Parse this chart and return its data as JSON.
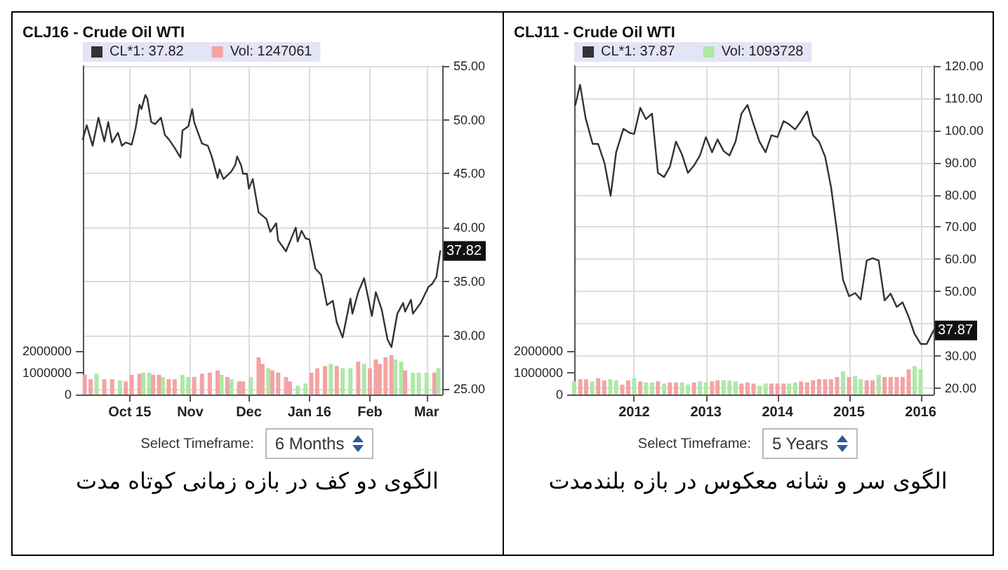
{
  "chart_data": [
    {
      "type": "line",
      "title": "CLJ16 - Crude Oil WTI",
      "xlim": [
        "2015-09-07",
        "2016-03-09"
      ],
      "xticks": [
        {
          "value": "2015-10-01",
          "label": "Oct 15"
        },
        {
          "value": "2015-11-01",
          "label": "Nov"
        },
        {
          "value": "2015-12-01",
          "label": "Dec"
        },
        {
          "value": "2016-01-01",
          "label": "Jan 16"
        },
        {
          "value": "2016-02-01",
          "label": "Feb"
        },
        {
          "value": "2016-03-01",
          "label": "Mar"
        }
      ],
      "ylim": [
        24.5,
        55
      ],
      "yticks": [
        {
          "value": 25,
          "label": "25.00"
        },
        {
          "value": 30,
          "label": "30.00"
        },
        {
          "value": 35,
          "label": "35.00"
        },
        {
          "value": 40,
          "label": "40.00"
        },
        {
          "value": 45,
          "label": "45.00"
        },
        {
          "value": 50,
          "label": "50.00"
        },
        {
          "value": 55,
          "label": "55.00"
        }
      ],
      "y2lim": [
        0,
        15000000
      ],
      "y2ticks": [
        0,
        1000000,
        2000000
      ],
      "grid": true,
      "legend": "top left",
      "series": [
        {
          "name": "CL*1: 37.82",
          "color": "#333333",
          "x": [
            "2015-09-07",
            "2015-09-09",
            "2015-09-12",
            "2015-09-15",
            "2015-09-18",
            "2015-09-20",
            "2015-09-22",
            "2015-09-25",
            "2015-09-27",
            "2015-09-29",
            "2015-10-02",
            "2015-10-04",
            "2015-10-06",
            "2015-10-07",
            "2015-10-09",
            "2015-10-10",
            "2015-10-12",
            "2015-10-14",
            "2015-10-17",
            "2015-10-19",
            "2015-10-21",
            "2015-10-24",
            "2015-10-27",
            "2015-10-28",
            "2015-10-31",
            "2015-11-02",
            "2015-11-03",
            "2015-11-07",
            "2015-11-10",
            "2015-11-12",
            "2015-11-15",
            "2015-11-16",
            "2015-11-18",
            "2015-11-22",
            "2015-11-24",
            "2015-11-25",
            "2015-11-27",
            "2015-11-28",
            "2015-11-30",
            "2015-12-01",
            "2015-12-03",
            "2015-12-06",
            "2015-12-10",
            "2015-12-12",
            "2015-12-15",
            "2015-12-16",
            "2015-12-20",
            "2015-12-25",
            "2015-12-26",
            "2015-12-28",
            "2015-12-30",
            "2016-01-01",
            "2016-01-04",
            "2016-01-07",
            "2016-01-10",
            "2016-01-13",
            "2016-01-15",
            "2016-01-18",
            "2016-01-22",
            "2016-01-23",
            "2016-01-26",
            "2016-01-29",
            "2016-02-02",
            "2016-02-04",
            "2016-02-07",
            "2016-02-10",
            "2016-02-12",
            "2016-02-15",
            "2016-02-18",
            "2016-02-19",
            "2016-02-22",
            "2016-02-23",
            "2016-02-27",
            "2016-03-02",
            "2016-03-04",
            "2016-03-06",
            "2016-03-08"
          ],
          "values": [
            48.2,
            49.5,
            47.6,
            50.2,
            48.0,
            49.8,
            47.9,
            48.8,
            47.6,
            47.9,
            47.7,
            49.2,
            51.4,
            51.0,
            52.3,
            52.0,
            49.8,
            49.6,
            50.2,
            48.6,
            48.2,
            47.4,
            46.5,
            49.0,
            49.4,
            51.0,
            49.8,
            47.8,
            47.6,
            46.6,
            44.6,
            45.4,
            44.5,
            45.2,
            45.8,
            46.6,
            45.8,
            45.0,
            45.0,
            43.6,
            44.5,
            41.4,
            40.8,
            39.6,
            40.4,
            38.8,
            37.8,
            40.0,
            38.7,
            39.7,
            39.0,
            38.9,
            36.2,
            35.6,
            32.8,
            33.2,
            31.2,
            29.8,
            33.4,
            32.0,
            34.0,
            35.3,
            31.8,
            34.0,
            32.4,
            29.6,
            28.9,
            32.0,
            33.0,
            32.2,
            33.3,
            32.0,
            33.0,
            34.5,
            34.8,
            35.4,
            37.82
          ]
        },
        {
          "name": "Vol: 1247061",
          "type": "bar",
          "axis": "y2",
          "color": "#f4a3a3",
          "x": [
            "2015-09-08",
            "2015-09-11",
            "2015-09-14",
            "2015-09-18",
            "2015-09-22",
            "2015-09-26",
            "2015-09-29",
            "2015-10-02",
            "2015-10-06",
            "2015-10-08",
            "2015-10-11",
            "2015-10-13",
            "2015-10-16",
            "2015-10-18",
            "2015-10-21",
            "2015-10-24",
            "2015-10-28",
            "2015-10-31",
            "2015-11-03",
            "2015-11-07",
            "2015-11-11",
            "2015-11-15",
            "2015-11-17",
            "2015-11-20",
            "2015-11-22",
            "2015-11-26",
            "2015-11-28",
            "2015-12-02",
            "2015-12-06",
            "2015-12-08",
            "2015-12-11",
            "2015-12-13",
            "2015-12-16",
            "2015-12-20",
            "2015-12-22",
            "2015-12-26",
            "2015-12-30",
            "2016-01-02",
            "2016-01-05",
            "2016-01-09",
            "2016-01-12",
            "2016-01-15",
            "2016-01-18",
            "2016-01-22",
            "2016-01-26",
            "2016-01-29",
            "2016-02-01",
            "2016-02-04",
            "2016-02-06",
            "2016-02-09",
            "2016-02-12",
            "2016-02-14",
            "2016-02-17",
            "2016-02-19",
            "2016-02-23",
            "2016-02-26",
            "2016-03-01",
            "2016-03-05",
            "2016-03-07"
          ],
          "values": [
            900000,
            700000,
            950000,
            700000,
            700000,
            650000,
            600000,
            900000,
            950000,
            1000000,
            1000000,
            900000,
            900000,
            800000,
            700000,
            700000,
            900000,
            800000,
            800000,
            950000,
            1000000,
            1100000,
            900000,
            800000,
            700000,
            600000,
            600000,
            800000,
            1700000,
            1400000,
            1200000,
            1100000,
            1000000,
            800000,
            600000,
            400000,
            500000,
            1000000,
            1200000,
            1300000,
            1400000,
            1300000,
            1200000,
            1200000,
            1500000,
            1400000,
            1200000,
            1600000,
            1400000,
            1700000,
            1800000,
            1600000,
            1500000,
            1100000,
            1000000,
            1000000,
            1000000,
            1000000,
            1200000
          ],
          "colors": [
            "#f4a3a3",
            "#f4a3a3",
            "#aee8a6",
            "#f4a3a3",
            "#f4a3a3",
            "#aee8a6",
            "#f4a3a3",
            "#f4a3a3",
            "#f4a3a3",
            "#aee8a6",
            "#aee8a6",
            "#f4a3a3",
            "#f4a3a3",
            "#aee8a6",
            "#f4a3a3",
            "#f4a3a3",
            "#aee8a6",
            "#aee8a6",
            "#f4a3a3",
            "#f4a3a3",
            "#f4a3a3",
            "#f4a3a3",
            "#aee8a6",
            "#f4a3a3",
            "#aee8a6",
            "#f4a3a3",
            "#f4a3a3",
            "#aee8a6",
            "#f4a3a3",
            "#f4a3a3",
            "#aee8a6",
            "#f4a3a3",
            "#f4a3a3",
            "#f4a3a3",
            "#f4a3a3",
            "#aee8a6",
            "#aee8a6",
            "#f4a3a3",
            "#f4a3a3",
            "#f4a3a3",
            "#aee8a6",
            "#f4a3a3",
            "#aee8a6",
            "#aee8a6",
            "#f4a3a3",
            "#aee8a6",
            "#f4a3a3",
            "#f4a3a3",
            "#f4a3a3",
            "#f4a3a3",
            "#f4a3a3",
            "#aee8a6",
            "#aee8a6",
            "#f4a3a3",
            "#aee8a6",
            "#aee8a6",
            "#aee8a6",
            "#f4a3a3",
            "#aee8a6"
          ]
        }
      ],
      "annotations": [
        {
          "text": "37.82",
          "x": "2016-03-08",
          "y": 37.82
        },
        "Select Timeframe:",
        "6 Months",
        "الگوی دو کف در بازه زمانی کوتاه مدت"
      ]
    },
    {
      "type": "line",
      "title": "CLJ11 - Crude Oil WTI",
      "xlim": [
        "2011-03-01",
        "2016-03-07"
      ],
      "xticks": [
        {
          "value": "2012-01-01",
          "label": "2012"
        },
        {
          "value": "2013-01-01",
          "label": "2013"
        },
        {
          "value": "2014-01-01",
          "label": "2014"
        },
        {
          "value": "2015-01-01",
          "label": "2015"
        },
        {
          "value": "2016-01-01",
          "label": "2016"
        }
      ],
      "ylim": [
        18,
        120
      ],
      "yticks": [
        {
          "value": 20,
          "label": "20.00"
        },
        {
          "value": 30,
          "label": "30.00"
        },
        {
          "value": 40,
          "label": null
        },
        {
          "value": 50,
          "label": "50.00"
        },
        {
          "value": 60,
          "label": "60.00"
        },
        {
          "value": 70,
          "label": "70.00"
        },
        {
          "value": 80,
          "label": "80.00"
        },
        {
          "value": 90,
          "label": "90.00"
        },
        {
          "value": 100,
          "label": "100.00"
        },
        {
          "value": 110,
          "label": "110.00"
        },
        {
          "value": 120,
          "label": "120.00"
        }
      ],
      "y2lim": [
        0,
        15000000
      ],
      "y2ticks": [
        0,
        1000000,
        2000000
      ],
      "grid": true,
      "legend": "top left",
      "series": [
        {
          "name": "CL*1: 37.87",
          "color": "#333333",
          "x": [
            "2011-03-07",
            "2011-03-31",
            "2011-04-28",
            "2011-06-03",
            "2011-07-01",
            "2011-08-03",
            "2011-09-03",
            "2011-10-01",
            "2011-11-07",
            "2011-12-10",
            "2012-01",
            "2012-02",
            "2012-03",
            "2012-04",
            "2012-05",
            "2012-06",
            "2012-07",
            "2012-08",
            "2012-09",
            "2012-10",
            "2012-11",
            "2012-12",
            "2013-01",
            "2013-02",
            "2013-03",
            "2013-04",
            "2013-05",
            "2013-06",
            "2013-07",
            "2013-08",
            "2013-09",
            "2013-10",
            "2013-11",
            "2013-12",
            "2014-01",
            "2014-02",
            "2014-03",
            "2014-04",
            "2014-05",
            "2014-06",
            "2014-07",
            "2014-08",
            "2014-09",
            "2014-10",
            "2014-11",
            "2014-12",
            "2015-01",
            "2015-02",
            "2015-03",
            "2015-04",
            "2015-05",
            "2015-06",
            "2015-07",
            "2015-08",
            "2015-09",
            "2015-10",
            "2015-11",
            "2015-12",
            "2016-01",
            "2016-02",
            "2016-03-07"
          ],
          "values": [
            107.9,
            114.2,
            103.9,
            95.8,
            95.8,
            89.8,
            79.7,
            93.2,
            100.5,
            99.2,
            98.9,
            107.0,
            103.5,
            105.2,
            86.8,
            85.5,
            88.7,
            96.5,
            92.5,
            86.8,
            89.1,
            92.2,
            97.9,
            93.2,
            97.2,
            93.6,
            92.2,
            96.5,
            105.2,
            107.9,
            101.9,
            96.5,
            93.2,
            98.5,
            97.9,
            102.9,
            101.9,
            100.3,
            102.9,
            105.9,
            98.5,
            96.5,
            91.8,
            82.4,
            68.3,
            53.6,
            48.5,
            49.5,
            47.5,
            59.6,
            60.3,
            59.6,
            47.2,
            49.3,
            45.2,
            46.6,
            42.1,
            36.8,
            33.7,
            33.7,
            37.87
          ]
        },
        {
          "name": "Vol: 1093728",
          "type": "bar",
          "axis": "y2",
          "color": "#aee8a6",
          "x": [
            "2011-03",
            "2011-04",
            "2011-05",
            "2011-06",
            "2011-07",
            "2011-08",
            "2011-09",
            "2011-10",
            "2011-11",
            "2011-12",
            "2012-01",
            "2012-02",
            "2012-03",
            "2012-04",
            "2012-05",
            "2012-06",
            "2012-07",
            "2012-08",
            "2012-09",
            "2012-10",
            "2012-11",
            "2012-12",
            "2013-01",
            "2013-02",
            "2013-03",
            "2013-04",
            "2013-05",
            "2013-06",
            "2013-07",
            "2013-08",
            "2013-09",
            "2013-10",
            "2013-11",
            "2013-12",
            "2014-01",
            "2014-02",
            "2014-03",
            "2014-04",
            "2014-05",
            "2014-06",
            "2014-07",
            "2014-08",
            "2014-09",
            "2014-10",
            "2014-11",
            "2014-12",
            "2015-01",
            "2015-02",
            "2015-03",
            "2015-04",
            "2015-05",
            "2015-06",
            "2015-07",
            "2015-08",
            "2015-09",
            "2015-10",
            "2015-11",
            "2015-12",
            "2016-01"
          ],
          "values": [
            600000,
            700000,
            700000,
            600000,
            750000,
            650000,
            700000,
            650000,
            450000,
            650000,
            750000,
            600000,
            550000,
            550000,
            600000,
            500000,
            550000,
            550000,
            550000,
            450000,
            550000,
            600000,
            550000,
            600000,
            650000,
            650000,
            650000,
            600000,
            500000,
            550000,
            500000,
            400000,
            500000,
            500000,
            500000,
            500000,
            500000,
            550000,
            600000,
            550000,
            650000,
            700000,
            700000,
            700000,
            800000,
            1050000,
            800000,
            850000,
            700000,
            650000,
            650000,
            900000,
            800000,
            800000,
            800000,
            800000,
            1150000,
            1300000,
            1150000
          ],
          "colors": [
            "#aee8a6",
            "#f4a3a3",
            "#f4a3a3",
            "#aee8a6",
            "#f4a3a3",
            "#f4a3a3",
            "#aee8a6",
            "#aee8a6",
            "#f4a3a3",
            "#f4a3a3",
            "#aee8a6",
            "#f4a3a3",
            "#aee8a6",
            "#aee8a6",
            "#f4a3a3",
            "#aee8a6",
            "#f4a3a3",
            "#f4a3a3",
            "#aee8a6",
            "#aee8a6",
            "#f4a3a3",
            "#aee8a6",
            "#aee8a6",
            "#f4a3a3",
            "#f4a3a3",
            "#aee8a6",
            "#aee8a6",
            "#aee8a6",
            "#f4a3a3",
            "#f4a3a3",
            "#f4a3a3",
            "#aee8a6",
            "#aee8a6",
            "#f4a3a3",
            "#f4a3a3",
            "#f4a3a3",
            "#aee8a6",
            "#aee8a6",
            "#f4a3a3",
            "#f4a3a3",
            "#f4a3a3",
            "#f4a3a3",
            "#f4a3a3",
            "#f4a3a3",
            "#f4a3a3",
            "#aee8a6",
            "#f4a3a3",
            "#aee8a6",
            "#aee8a6",
            "#f4a3a3",
            "#f4a3a3",
            "#aee8a6",
            "#f4a3a3",
            "#f4a3a3",
            "#f4a3a3",
            "#f4a3a3",
            "#f4a3a3",
            "#aee8a6",
            "#aee8a6"
          ]
        }
      ],
      "annotations": [
        {
          "text": "37.87",
          "x": "2016-03-07",
          "y": 37.87
        },
        "Select Timeframe:",
        "5 Years",
        "الگوی سر و شانه معکوس در بازه بلندمدت"
      ]
    }
  ]
}
